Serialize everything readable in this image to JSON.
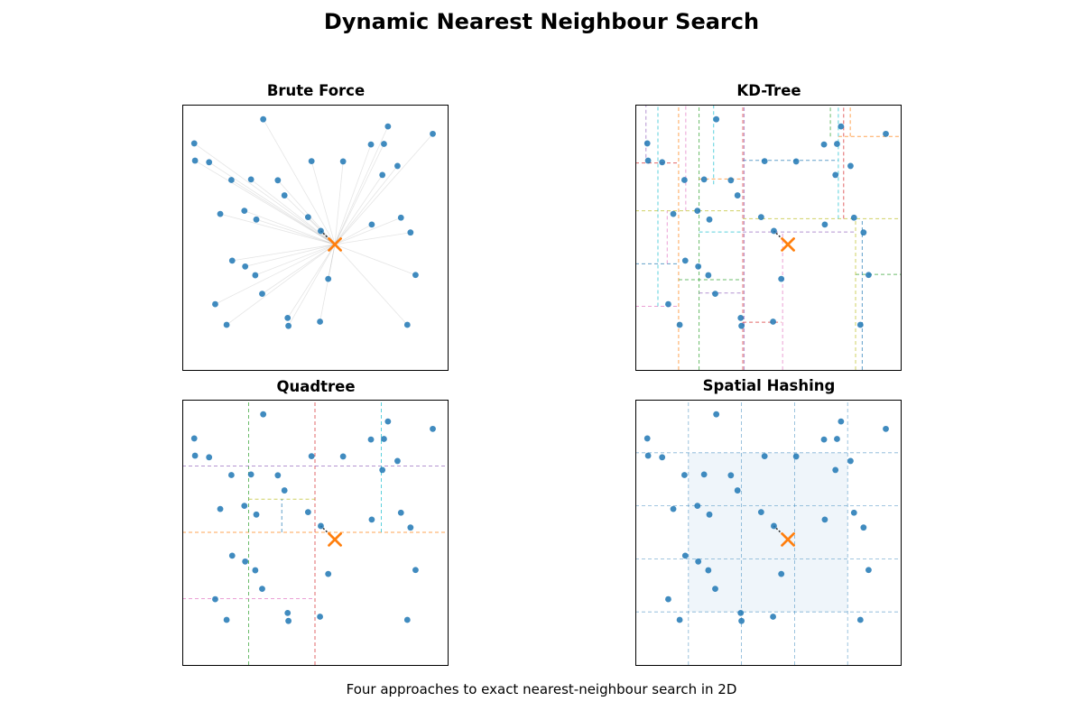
{
  "figure": {
    "title": "Dynamic Nearest Neighbour Search",
    "caption": "Four approaches to exact nearest-neighbour search in 2D"
  },
  "colors": {
    "points": "#1f77b4",
    "query": "#ff7f0e",
    "split_palette": [
      "#d62728",
      "#ff7f0e",
      "#2ca02c",
      "#9467bd",
      "#17becf",
      "#e377c2",
      "#bcbd22",
      "#1f77b4"
    ]
  },
  "chart_data": [
    {
      "type": "scatter",
      "title": "Brute Force",
      "xlim": [
        0,
        1
      ],
      "ylim": [
        0,
        1
      ],
      "axis_ticks": false,
      "grid": false,
      "points": [
        [
          0.305,
          0.945
        ],
        [
          0.775,
          0.918
        ],
        [
          0.944,
          0.89
        ],
        [
          0.045,
          0.854
        ],
        [
          0.711,
          0.85
        ],
        [
          0.76,
          0.852
        ],
        [
          0.048,
          0.789
        ],
        [
          0.101,
          0.783
        ],
        [
          0.487,
          0.787
        ],
        [
          0.606,
          0.786
        ],
        [
          0.811,
          0.769
        ],
        [
          0.754,
          0.735
        ],
        [
          0.185,
          0.716
        ],
        [
          0.259,
          0.718
        ],
        [
          0.36,
          0.715
        ],
        [
          0.385,
          0.658
        ],
        [
          0.143,
          0.588
        ],
        [
          0.234,
          0.6
        ],
        [
          0.279,
          0.567
        ],
        [
          0.474,
          0.576
        ],
        [
          0.714,
          0.548
        ],
        [
          0.824,
          0.574
        ],
        [
          0.522,
          0.524
        ],
        [
          0.86,
          0.518
        ],
        [
          0.188,
          0.412
        ],
        [
          0.237,
          0.39
        ],
        [
          0.275,
          0.357
        ],
        [
          0.879,
          0.358
        ],
        [
          0.55,
          0.343
        ],
        [
          0.301,
          0.287
        ],
        [
          0.124,
          0.248
        ],
        [
          0.397,
          0.196
        ],
        [
          0.519,
          0.182
        ],
        [
          0.167,
          0.17
        ],
        [
          0.4,
          0.166
        ],
        [
          0.848,
          0.17
        ]
      ],
      "query": [
        0.575,
        0.473
      ]
    },
    {
      "type": "scatter",
      "title": "KD-Tree",
      "xlim": [
        0,
        1
      ],
      "ylim": [
        0,
        1
      ],
      "axis_ticks": false,
      "grid": false,
      "points": [
        [
          0.305,
          0.945
        ],
        [
          0.775,
          0.918
        ],
        [
          0.944,
          0.89
        ],
        [
          0.045,
          0.854
        ],
        [
          0.711,
          0.85
        ],
        [
          0.76,
          0.852
        ],
        [
          0.048,
          0.789
        ],
        [
          0.101,
          0.783
        ],
        [
          0.487,
          0.787
        ],
        [
          0.606,
          0.786
        ],
        [
          0.811,
          0.769
        ],
        [
          0.754,
          0.735
        ],
        [
          0.185,
          0.716
        ],
        [
          0.259,
          0.718
        ],
        [
          0.36,
          0.715
        ],
        [
          0.385,
          0.658
        ],
        [
          0.143,
          0.588
        ],
        [
          0.234,
          0.6
        ],
        [
          0.279,
          0.567
        ],
        [
          0.474,
          0.576
        ],
        [
          0.714,
          0.548
        ],
        [
          0.824,
          0.574
        ],
        [
          0.522,
          0.524
        ],
        [
          0.86,
          0.518
        ],
        [
          0.188,
          0.412
        ],
        [
          0.237,
          0.39
        ],
        [
          0.275,
          0.357
        ],
        [
          0.879,
          0.358
        ],
        [
          0.55,
          0.343
        ],
        [
          0.301,
          0.287
        ],
        [
          0.124,
          0.248
        ],
        [
          0.397,
          0.196
        ],
        [
          0.519,
          0.182
        ],
        [
          0.167,
          0.17
        ],
        [
          0.4,
          0.166
        ],
        [
          0.848,
          0.17
        ]
      ],
      "query": [
        0.575,
        0.473
      ],
      "partition_lines": [
        {
          "orient": "v",
          "at": 0.405,
          "from": 0,
          "to": 1
        },
        {
          "orient": "v",
          "at": 0.163,
          "from": 0,
          "to": 1
        },
        {
          "orient": "v",
          "at": 0.24,
          "from": 0,
          "to": 1
        },
        {
          "orient": "v",
          "at": 0.04,
          "from": 0.8,
          "to": 1
        },
        {
          "orient": "v",
          "at": 0.295,
          "from": 0.7,
          "to": 1
        },
        {
          "orient": "v",
          "at": 0.19,
          "from": 0.6,
          "to": 1
        },
        {
          "orient": "h",
          "at": 0.6,
          "from": 0,
          "to": 0.405
        },
        {
          "orient": "h",
          "at": 0.4,
          "from": 0,
          "to": 0.163
        },
        {
          "orient": "h",
          "at": 0.78,
          "from": 0,
          "to": 0.163
        },
        {
          "orient": "h",
          "at": 0.72,
          "from": 0.24,
          "to": 0.405
        },
        {
          "orient": "h",
          "at": 0.34,
          "from": 0.163,
          "to": 0.405
        },
        {
          "orient": "h",
          "at": 0.29,
          "from": 0.24,
          "to": 0.405
        },
        {
          "orient": "h",
          "at": 0.52,
          "from": 0.24,
          "to": 0.405
        },
        {
          "orient": "h",
          "at": 0.24,
          "from": 0,
          "to": 0.163
        },
        {
          "orient": "h",
          "at": 0.57,
          "from": 0.405,
          "to": 1
        },
        {
          "orient": "h",
          "at": 0.79,
          "from": 0.405,
          "to": 0.765
        },
        {
          "orient": "h",
          "at": 0.18,
          "from": 0.405,
          "to": 0.55
        },
        {
          "orient": "h",
          "at": 0.88,
          "from": 0.765,
          "to": 1
        },
        {
          "orient": "h",
          "at": 0.36,
          "from": 0.83,
          "to": 1
        },
        {
          "orient": "h",
          "at": 0.52,
          "from": 0.405,
          "to": 0.83
        },
        {
          "orient": "v",
          "at": 0.765,
          "from": 0.57,
          "to": 1
        },
        {
          "orient": "v",
          "at": 0.555,
          "from": 0,
          "to": 0.52
        },
        {
          "orient": "v",
          "at": 0.83,
          "from": 0,
          "to": 0.57
        },
        {
          "orient": "v",
          "at": 0.855,
          "from": 0,
          "to": 0.57
        },
        {
          "orient": "v",
          "at": 0.785,
          "from": 0.57,
          "to": 1
        },
        {
          "orient": "v",
          "at": 0.81,
          "from": 0.88,
          "to": 1
        },
        {
          "orient": "v",
          "at": 0.735,
          "from": 0.88,
          "to": 1
        },
        {
          "orient": "v",
          "at": 0.41,
          "from": 0,
          "to": 1
        },
        {
          "orient": "v",
          "at": 0.085,
          "from": 0.24,
          "to": 1
        },
        {
          "orient": "v",
          "at": 0.12,
          "from": 0.4,
          "to": 0.6
        }
      ]
    },
    {
      "type": "scatter",
      "title": "Quadtree",
      "xlim": [
        0,
        1
      ],
      "ylim": [
        0,
        1
      ],
      "axis_ticks": false,
      "grid": false,
      "points": [
        [
          0.305,
          0.945
        ],
        [
          0.775,
          0.918
        ],
        [
          0.944,
          0.89
        ],
        [
          0.045,
          0.854
        ],
        [
          0.711,
          0.85
        ],
        [
          0.76,
          0.852
        ],
        [
          0.048,
          0.789
        ],
        [
          0.101,
          0.783
        ],
        [
          0.487,
          0.787
        ],
        [
          0.606,
          0.786
        ],
        [
          0.811,
          0.769
        ],
        [
          0.754,
          0.735
        ],
        [
          0.185,
          0.716
        ],
        [
          0.259,
          0.718
        ],
        [
          0.36,
          0.715
        ],
        [
          0.385,
          0.658
        ],
        [
          0.143,
          0.588
        ],
        [
          0.234,
          0.6
        ],
        [
          0.279,
          0.567
        ],
        [
          0.474,
          0.576
        ],
        [
          0.714,
          0.548
        ],
        [
          0.824,
          0.574
        ],
        [
          0.522,
          0.524
        ],
        [
          0.86,
          0.518
        ],
        [
          0.188,
          0.412
        ],
        [
          0.237,
          0.39
        ],
        [
          0.275,
          0.357
        ],
        [
          0.879,
          0.358
        ],
        [
          0.55,
          0.343
        ],
        [
          0.301,
          0.287
        ],
        [
          0.124,
          0.248
        ],
        [
          0.397,
          0.196
        ],
        [
          0.519,
          0.182
        ],
        [
          0.167,
          0.17
        ],
        [
          0.4,
          0.166
        ],
        [
          0.848,
          0.17
        ]
      ],
      "query": [
        0.575,
        0.473
      ],
      "partition_lines": [
        {
          "orient": "v",
          "at": 0.5,
          "from": 0,
          "to": 1
        },
        {
          "orient": "h",
          "at": 0.5,
          "from": 0,
          "to": 1
        },
        {
          "orient": "v",
          "at": 0.25,
          "from": 0,
          "to": 1
        },
        {
          "orient": "h",
          "at": 0.75,
          "from": 0,
          "to": 1
        },
        {
          "orient": "v",
          "at": 0.75,
          "from": 0.5,
          "to": 1
        },
        {
          "orient": "h",
          "at": 0.25,
          "from": 0,
          "to": 0.5
        },
        {
          "orient": "h",
          "at": 0.625,
          "from": 0.25,
          "to": 0.5
        },
        {
          "orient": "v",
          "at": 0.375,
          "from": 0.5,
          "to": 0.625
        }
      ]
    },
    {
      "type": "scatter",
      "title": "Spatial Hashing",
      "xlim": [
        0,
        1
      ],
      "ylim": [
        0,
        1
      ],
      "axis_ticks": false,
      "grid": false,
      "points": [
        [
          0.305,
          0.945
        ],
        [
          0.775,
          0.918
        ],
        [
          0.944,
          0.89
        ],
        [
          0.045,
          0.854
        ],
        [
          0.711,
          0.85
        ],
        [
          0.76,
          0.852
        ],
        [
          0.048,
          0.789
        ],
        [
          0.101,
          0.783
        ],
        [
          0.487,
          0.787
        ],
        [
          0.606,
          0.786
        ],
        [
          0.811,
          0.769
        ],
        [
          0.754,
          0.735
        ],
        [
          0.185,
          0.716
        ],
        [
          0.259,
          0.718
        ],
        [
          0.36,
          0.715
        ],
        [
          0.385,
          0.658
        ],
        [
          0.143,
          0.588
        ],
        [
          0.234,
          0.6
        ],
        [
          0.279,
          0.567
        ],
        [
          0.474,
          0.576
        ],
        [
          0.714,
          0.548
        ],
        [
          0.824,
          0.574
        ],
        [
          0.522,
          0.524
        ],
        [
          0.86,
          0.518
        ],
        [
          0.188,
          0.412
        ],
        [
          0.237,
          0.39
        ],
        [
          0.275,
          0.357
        ],
        [
          0.879,
          0.358
        ],
        [
          0.55,
          0.343
        ],
        [
          0.301,
          0.287
        ],
        [
          0.124,
          0.248
        ],
        [
          0.397,
          0.196
        ],
        [
          0.519,
          0.182
        ],
        [
          0.167,
          0.17
        ],
        [
          0.4,
          0.166
        ],
        [
          0.848,
          0.17
        ]
      ],
      "query": [
        0.575,
        0.473
      ],
      "grid_cell_size": 0.2,
      "searched_region": {
        "x": [
          0.2,
          0.8
        ],
        "y": [
          0.2,
          0.8
        ]
      }
    }
  ]
}
